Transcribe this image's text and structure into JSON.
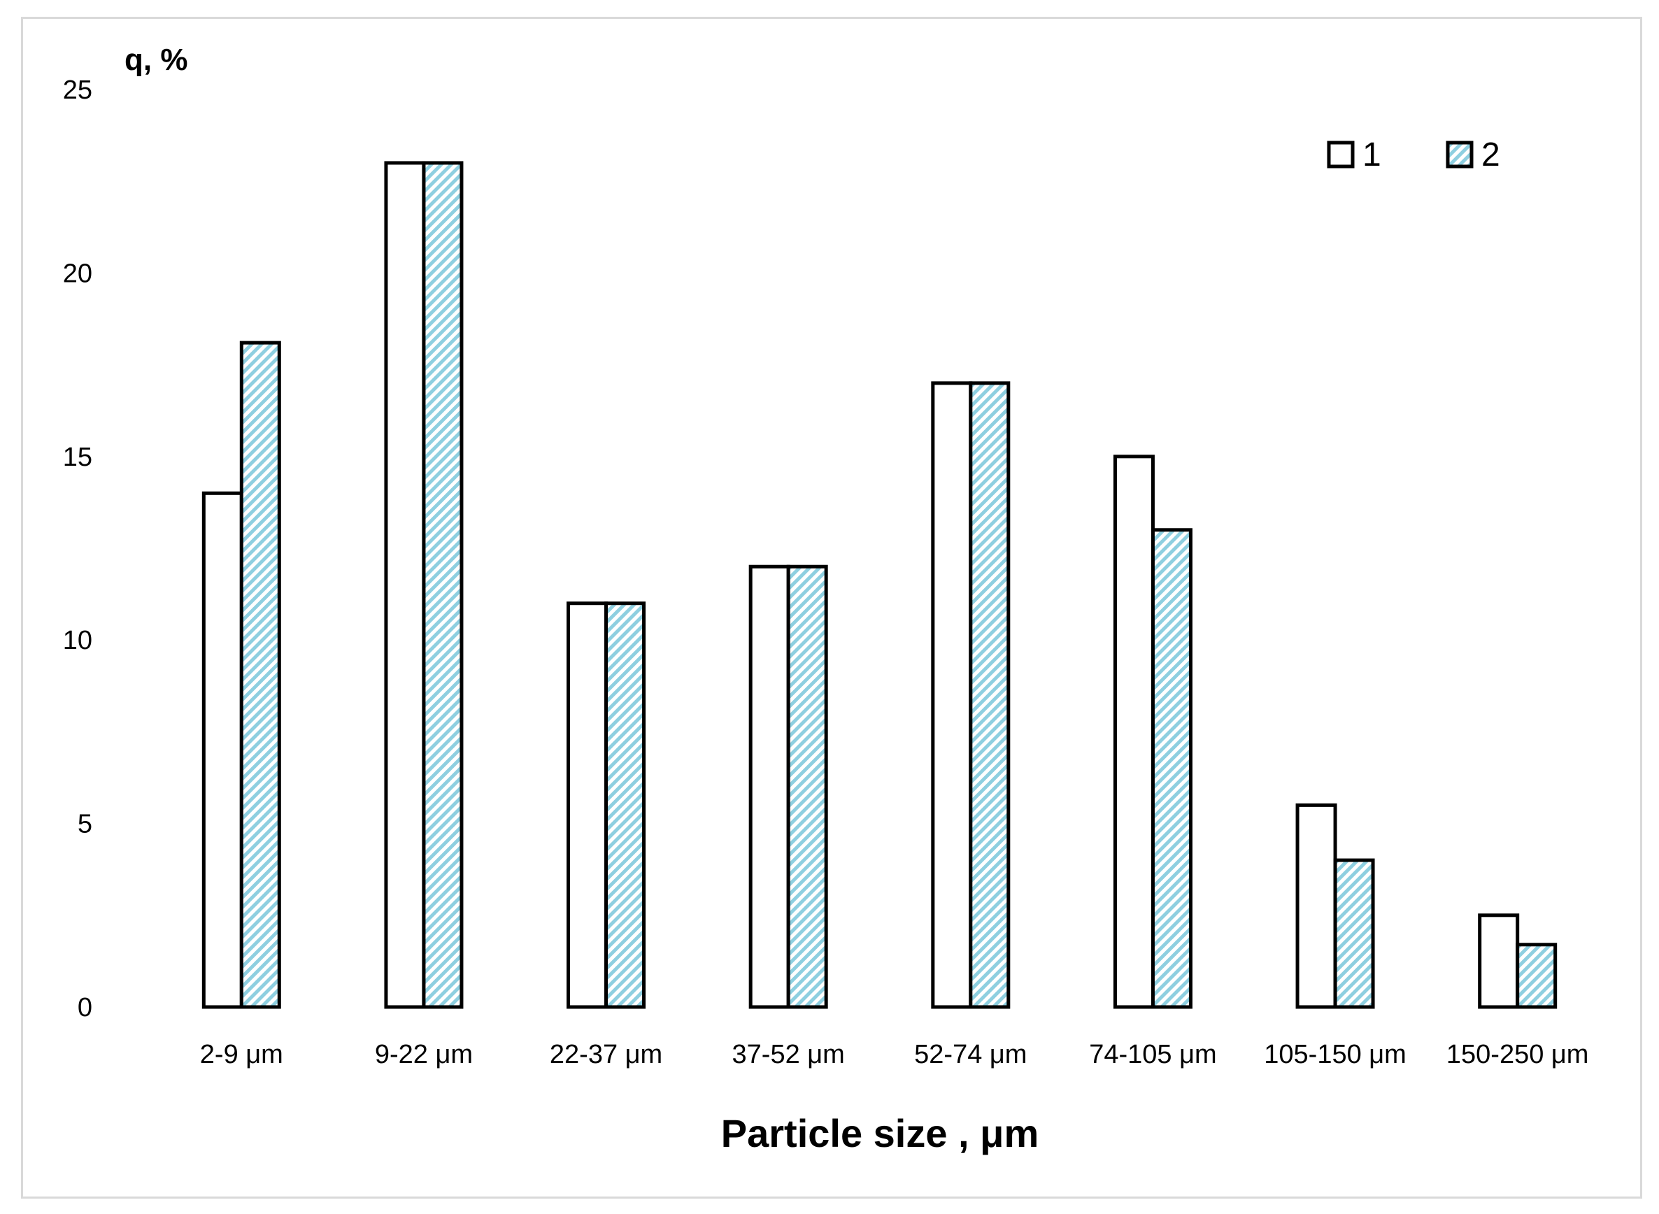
{
  "chart_data": {
    "type": "bar",
    "ylabel": "q, %",
    "xlabel": "Particle size , μm",
    "ylim": [
      0,
      25
    ],
    "yticks": [
      0,
      5,
      10,
      15,
      20,
      25
    ],
    "categories": [
      "2-9 μm",
      "9-22 μm",
      "22-37 μm",
      "37-52 μm",
      "52-74 μm",
      "74-105 μm",
      "105-150 μm",
      "150-250 μm"
    ],
    "series": [
      {
        "name": "1",
        "values": [
          14,
          23,
          11,
          12,
          17,
          15,
          5.5,
          2.5
        ],
        "fill": "#ffffff"
      },
      {
        "name": "2",
        "values": [
          18.1,
          23,
          11,
          12,
          17,
          13,
          4,
          1.7
        ],
        "fill": "hatch-lightblue"
      }
    ],
    "legend_position": "top-right",
    "grid": false
  }
}
